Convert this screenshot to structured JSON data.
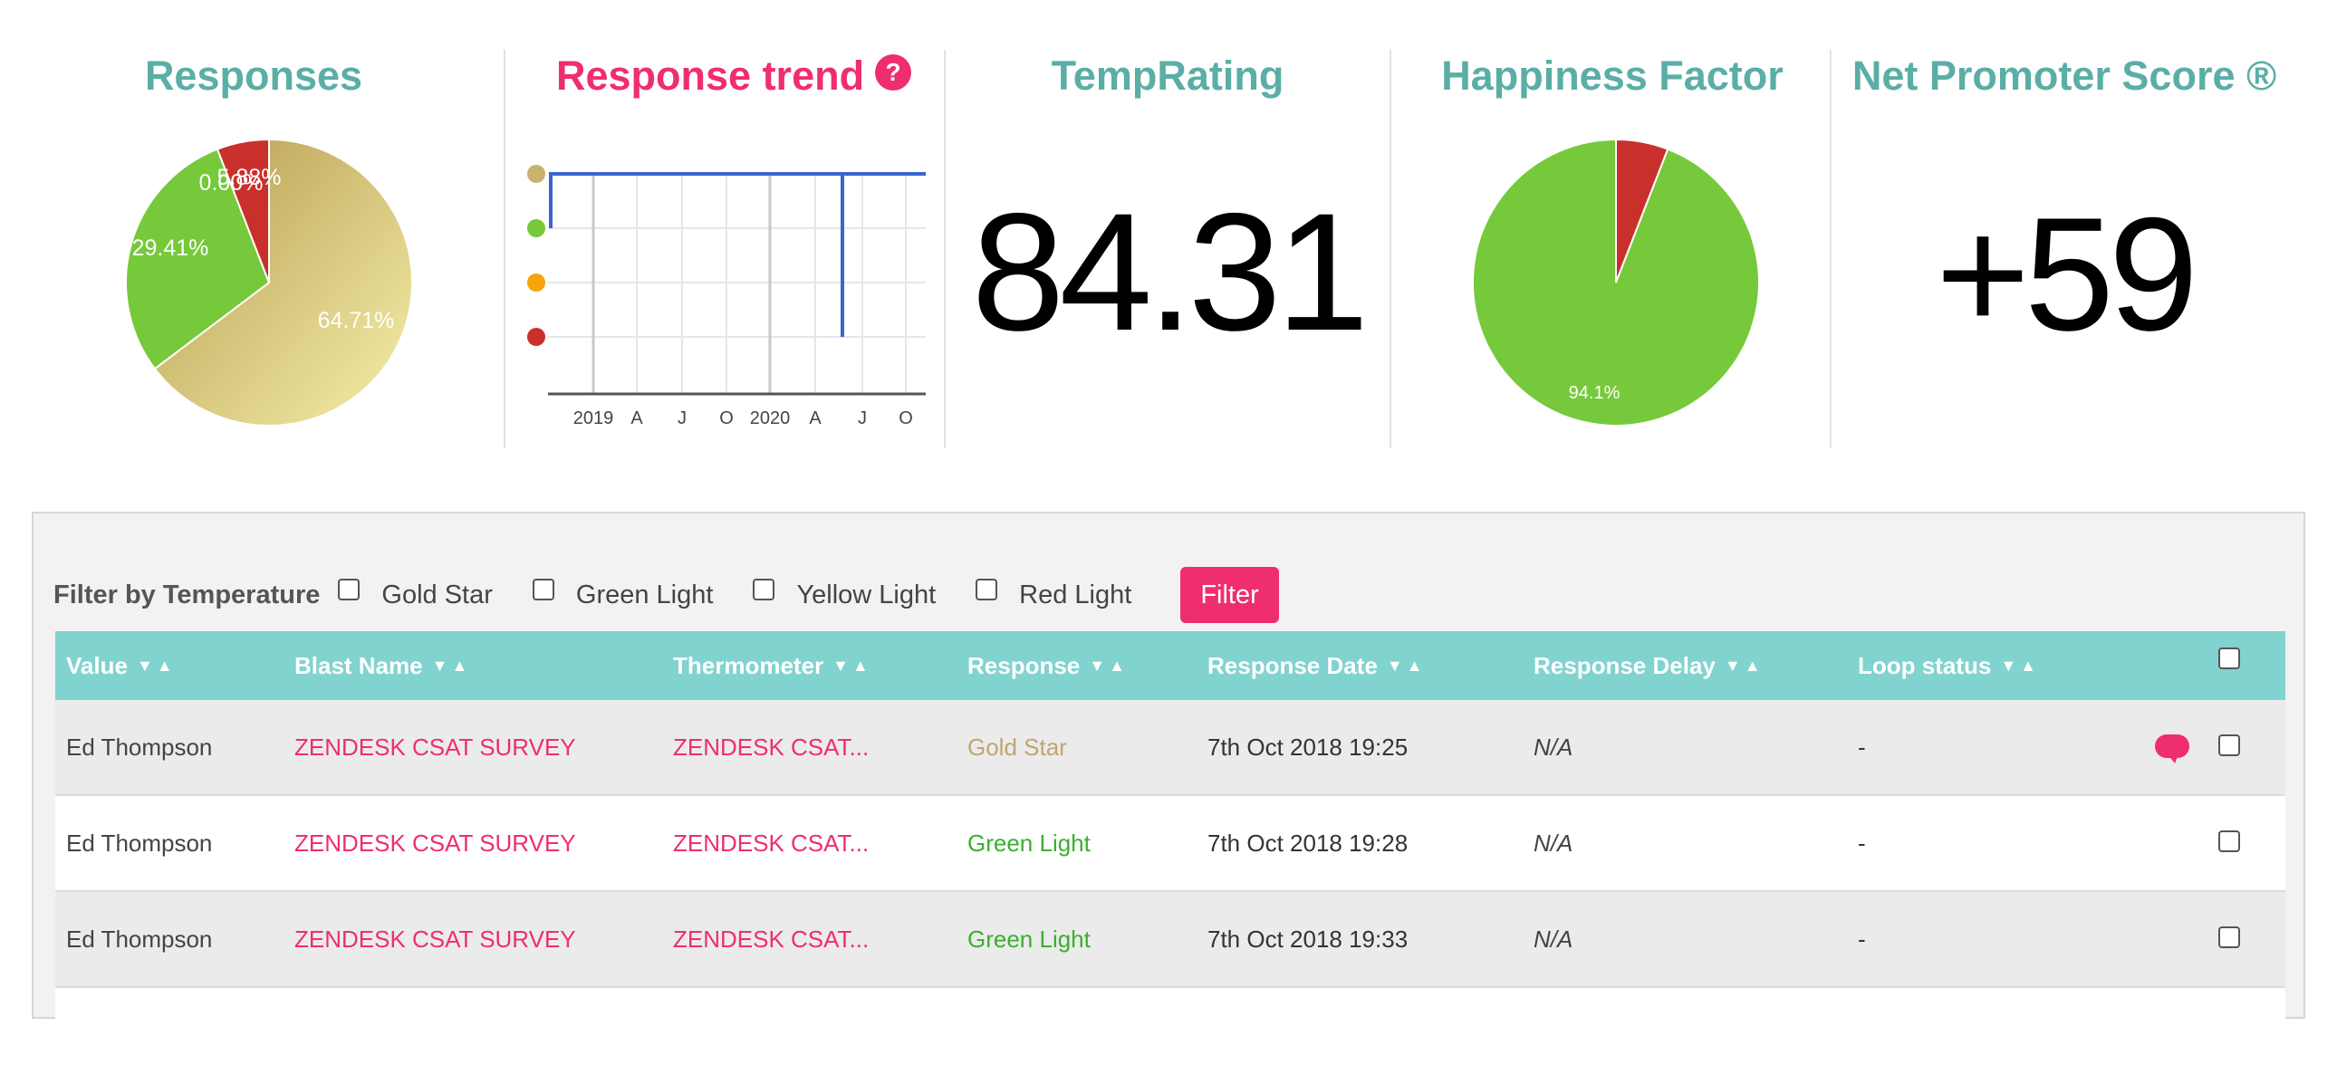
{
  "stats": {
    "responses": {
      "title": "Responses",
      "slices": [
        {
          "label": "64.71%",
          "value": 64.71
        },
        {
          "label": "29.41%",
          "value": 29.41
        },
        {
          "label": "0.00%",
          "value": 0.0
        },
        {
          "label": "5.88%",
          "value": 5.88
        }
      ]
    },
    "trend": {
      "title": "Response trend",
      "help_glyph": "?",
      "x_ticks": [
        "2019",
        "A",
        "J",
        "O",
        "2020",
        "A",
        "J",
        "O"
      ],
      "legend_colors": [
        "#c8b26e",
        "#76c93a",
        "#f5a50a",
        "#c9302c"
      ]
    },
    "temprating": {
      "title": "TempRating",
      "value": "84.31"
    },
    "happiness": {
      "title": "Happiness Factor",
      "label": "94.1%",
      "value": 94.1
    },
    "nps": {
      "title": "Net Promoter Score ®",
      "value": "+59"
    }
  },
  "colors": {
    "teal": "#5aaea6",
    "pink": "#ef2e6e",
    "gold": "#c0a571",
    "green": "#76c93a",
    "red": "#c9302c",
    "header": "#81d3cf"
  },
  "filter": {
    "label": "Filter by Temperature",
    "options": [
      "Gold Star",
      "Green Light",
      "Yellow Light",
      "Red Light"
    ],
    "button": "Filter"
  },
  "table": {
    "headers": [
      "Value",
      "Blast Name",
      "Thermometer",
      "Response",
      "Response Date",
      "Response Delay",
      "Loop status"
    ],
    "rows": [
      {
        "value": "Ed Thompson",
        "blast": "ZENDESK CSAT SURVEY",
        "thermometer": "ZENDESK CSAT...",
        "response": "Gold Star",
        "date": "7th Oct 2018 19:25",
        "delay": "N/A",
        "loop": "-",
        "comment_icon": "speech-bubble-icon"
      },
      {
        "value": "Ed Thompson",
        "blast": "ZENDESK CSAT SURVEY",
        "thermometer": "ZENDESK CSAT...",
        "response": "Green Light",
        "date": "7th Oct 2018 19:28",
        "delay": "N/A",
        "loop": "-"
      },
      {
        "value": "Ed Thompson",
        "blast": "ZENDESK CSAT SURVEY",
        "thermometer": "ZENDESK CSAT...",
        "response": "Green Light",
        "date": "7th Oct 2018 19:33",
        "delay": "N/A",
        "loop": "-"
      }
    ]
  }
}
